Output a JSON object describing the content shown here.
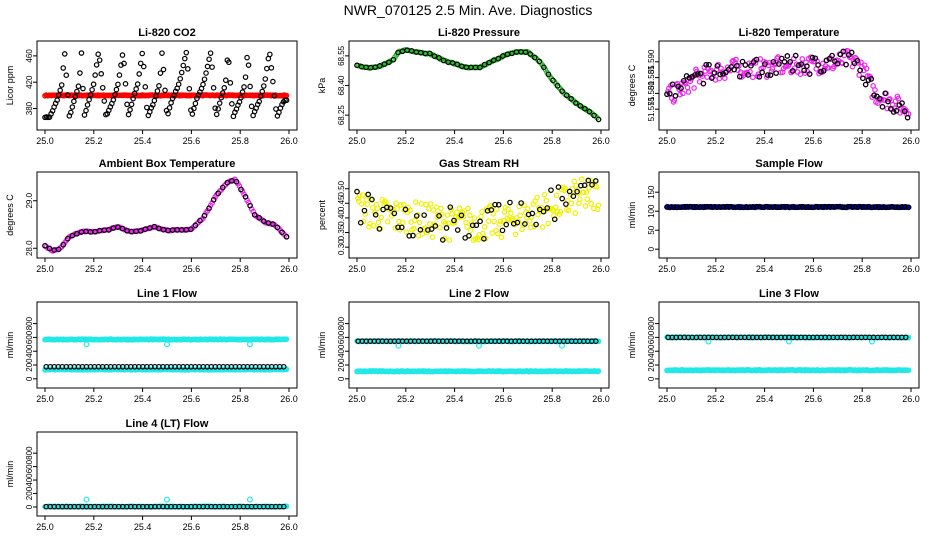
{
  "title": "NWR_070125  2.5 Min. Ave. Diagnostics",
  "colors": {
    "black": "#000000",
    "red": "#ff0000",
    "green": "#22bb22",
    "magenta": "#ee22ee",
    "yellow": "#f0f000",
    "blue": "#0000aa",
    "cyan": "#22e8e8"
  },
  "chart_data": [
    {
      "type": "scatter",
      "title": "Li-820 CO2",
      "ylabel": "Licor ppm",
      "xlim": [
        25.0,
        26.0
      ],
      "ylim": [
        355,
        475
      ],
      "xticks": [
        "25.0",
        "25.2",
        "25.4",
        "25.6",
        "25.8",
        "26.0"
      ],
      "yticks": [
        "380",
        "420",
        "460"
      ],
      "ytick_values": [
        380,
        420,
        460
      ],
      "series": [
        {
          "name": "co2 (red)",
          "color": "red",
          "x": [
            25.0,
            25.99
          ],
          "y": [
            400,
            400
          ],
          "dense": true
        },
        {
          "name": "standards (black)",
          "color": "black",
          "x": [
            25.02,
            25.05,
            25.07,
            25.08,
            25.1,
            25.12,
            25.14,
            25.15,
            25.16,
            25.18,
            25.2,
            25.22,
            25.25,
            25.28,
            25.3,
            25.32,
            25.34,
            25.36,
            25.38,
            25.4,
            25.42,
            25.45,
            25.47,
            25.48,
            25.5,
            25.52,
            25.55,
            25.58,
            25.6,
            25.62,
            25.65,
            25.68,
            25.7,
            25.72,
            25.74,
            25.75,
            25.77,
            25.8,
            25.82,
            25.83,
            25.85,
            25.88,
            25.9,
            25.92,
            25.95,
            25.98
          ],
          "y": [
            367,
            393,
            418,
            467,
            367,
            393,
            418,
            467,
            367,
            393,
            418,
            467,
            367,
            393,
            418,
            467,
            367,
            393,
            418,
            467,
            367,
            393,
            418,
            467,
            367,
            393,
            418,
            467,
            367,
            393,
            418,
            467,
            367,
            393,
            418,
            467,
            367,
            393,
            418,
            467,
            367,
            393,
            418,
            467,
            367,
            393
          ]
        }
      ]
    },
    {
      "type": "scatter",
      "title": "Li-820 Pressure",
      "ylabel": "kPa",
      "xlim": [
        25.0,
        26.0
      ],
      "ylim": [
        68.2,
        68.6
      ],
      "xticks": [
        "25.0",
        "25.2",
        "25.4",
        "25.6",
        "25.8",
        "26.0"
      ],
      "yticks": [
        "68.25",
        "68.40",
        "68.55"
      ],
      "ytick_values": [
        68.25,
        68.4,
        68.55
      ],
      "series": [
        {
          "name": "pressure (green)",
          "color": "green",
          "x": [
            25.0,
            25.05,
            25.1,
            25.15,
            25.17,
            25.2,
            25.25,
            25.3,
            25.35,
            25.4,
            25.45,
            25.5,
            25.55,
            25.6,
            25.65,
            25.7,
            25.75,
            25.8,
            25.85,
            25.9,
            25.95,
            26.0
          ],
          "y": [
            68.5,
            68.49,
            68.5,
            68.53,
            68.57,
            68.58,
            68.57,
            68.56,
            68.53,
            68.51,
            68.49,
            68.49,
            68.52,
            68.55,
            68.57,
            68.57,
            68.52,
            68.43,
            68.36,
            68.31,
            68.27,
            68.22
          ],
          "line": true
        },
        {
          "name": "samples (black)",
          "color": "black",
          "step": 3
        }
      ]
    },
    {
      "type": "scatter",
      "title": "Li-820 Temperature",
      "ylabel": "degrees C",
      "xlim": [
        25.0,
        26.0
      ],
      "ylim": [
        51.57,
        51.595
      ],
      "xticks": [
        "25.0",
        "25.2",
        "25.4",
        "25.6",
        "25.8",
        "26.0"
      ],
      "yticks": [
        "51.575",
        "51.580",
        "51.585",
        "51.590"
      ],
      "ytick_values": [
        51.575,
        51.58,
        51.585,
        51.59
      ],
      "series": [
        {
          "name": "temperature (magenta)",
          "color": "magenta",
          "x": [
            25.0,
            25.05,
            25.1,
            25.15,
            25.2,
            25.3,
            25.4,
            25.5,
            25.6,
            25.7,
            25.75,
            25.8,
            25.85,
            25.9,
            25.95,
            26.0
          ],
          "y": [
            51.579,
            51.581,
            51.584,
            51.586,
            51.587,
            51.588,
            51.588,
            51.589,
            51.589,
            51.59,
            51.591,
            51.588,
            51.58,
            51.578,
            51.576,
            51.575
          ],
          "noise": 0.003
        },
        {
          "name": "samples (black)",
          "color": "black",
          "step": 3
        }
      ]
    },
    {
      "type": "scatter",
      "title": "Ambient Box Temperature",
      "ylabel": "degrees C",
      "xlim": [
        25.0,
        26.0
      ],
      "ylim": [
        27.9,
        29.5
      ],
      "xticks": [
        "25.0",
        "25.2",
        "25.4",
        "25.6",
        "25.8",
        "26.0"
      ],
      "yticks": [
        "28.0",
        "29.0"
      ],
      "ytick_values": [
        28.0,
        29.0
      ],
      "series": [
        {
          "name": "box temp (magenta)",
          "color": "magenta",
          "x": [
            25.0,
            25.03,
            25.06,
            25.1,
            25.15,
            25.2,
            25.25,
            25.3,
            25.35,
            25.4,
            25.45,
            25.5,
            25.55,
            25.6,
            25.65,
            25.7,
            25.75,
            25.78,
            25.82,
            25.86,
            25.9,
            25.94,
            25.97,
            26.0
          ],
          "y": [
            28.05,
            27.95,
            27.98,
            28.25,
            28.35,
            28.35,
            28.38,
            28.45,
            28.35,
            28.38,
            28.45,
            28.38,
            28.38,
            28.4,
            28.65,
            29.1,
            29.4,
            29.45,
            29.1,
            28.7,
            28.55,
            28.5,
            28.35,
            28.2
          ],
          "line": true
        },
        {
          "name": "samples (black)",
          "color": "black",
          "step": 3
        }
      ]
    },
    {
      "type": "scatter",
      "title": "Gas Stream RH",
      "ylabel": "percent",
      "xlim": [
        25.0,
        26.0
      ],
      "ylim": [
        0.28,
        0.54
      ],
      "xticks": [
        "25.0",
        "25.2",
        "25.4",
        "25.6",
        "25.8",
        "26.0"
      ],
      "yticks": [
        "0.30",
        "0.35",
        "0.40",
        "0.45",
        "0.50"
      ],
      "ytick_values": [
        0.3,
        0.35,
        0.4,
        0.45,
        0.5
      ],
      "series": [
        {
          "name": "rh (yellow)",
          "color": "yellow",
          "x": [
            25.0,
            25.1,
            25.2,
            25.3,
            25.4,
            25.5,
            25.6,
            25.7,
            25.8,
            25.9,
            26.0
          ],
          "y": [
            0.44,
            0.41,
            0.4,
            0.39,
            0.38,
            0.38,
            0.39,
            0.41,
            0.44,
            0.47,
            0.49
          ],
          "noise": 0.06
        },
        {
          "name": "samples (black)",
          "color": "black",
          "step": 4
        }
      ]
    },
    {
      "type": "scatter",
      "title": "Sample Flow",
      "ylabel": "ml/min",
      "xlim": [
        25.0,
        26.0
      ],
      "ylim": [
        -10,
        190
      ],
      "xticks": [
        "25.0",
        "25.2",
        "25.4",
        "25.6",
        "25.8",
        "26.0"
      ],
      "yticks": [
        "0",
        "50",
        "100",
        "150"
      ],
      "ytick_values": [
        0,
        50,
        100,
        150
      ],
      "series": [
        {
          "name": "sample flow (blue)",
          "color": "blue",
          "x": [
            25.0,
            25.99
          ],
          "y": [
            111,
            111
          ],
          "dense": true,
          "noise": 2
        },
        {
          "name": "samples (black)",
          "color": "black",
          "step": 3
        }
      ]
    },
    {
      "type": "scatter",
      "title": "Line 1 Flow",
      "ylabel": "ml/min",
      "xlim": [
        25.0,
        26.0
      ],
      "ylim": [
        -60,
        1040
      ],
      "xticks": [
        "25.0",
        "25.2",
        "25.4",
        "25.6",
        "25.8",
        "26.0"
      ],
      "yticks": [
        "0",
        "200",
        "400",
        "600",
        "800"
      ],
      "ytick_values": [
        0,
        200,
        400,
        600,
        800
      ],
      "series": [
        {
          "name": "line 1 (cyan high)",
          "color": "cyan",
          "x": [
            25.0,
            25.99
          ],
          "y": [
            570,
            570
          ],
          "dense": true,
          "outliers": [
            [
              25.17,
              500
            ],
            [
              25.5,
              500
            ],
            [
              25.84,
              500
            ]
          ]
        },
        {
          "name": "line 1 (cyan low)",
          "color": "cyan",
          "x": [
            25.0,
            25.99
          ],
          "y": [
            135,
            135
          ],
          "dense": true
        },
        {
          "name": "line 1 (black)",
          "color": "black",
          "x": [
            25.0,
            25.99
          ],
          "y": [
            175,
            175
          ],
          "step": 1,
          "sparse": true
        }
      ]
    },
    {
      "type": "scatter",
      "title": "Line 2 Flow",
      "ylabel": "ml/min",
      "xlim": [
        25.0,
        26.0
      ],
      "ylim": [
        -60,
        1040
      ],
      "xticks": [
        "25.0",
        "25.2",
        "25.4",
        "25.6",
        "25.8",
        "26.0"
      ],
      "yticks": [
        "0",
        "200",
        "400",
        "600",
        "800"
      ],
      "ytick_values": [
        0,
        200,
        400,
        600,
        800
      ],
      "series": [
        {
          "name": "line 2 (cyan high)",
          "color": "cyan",
          "x": [
            25.0,
            25.99
          ],
          "y": [
            545,
            545
          ],
          "dense": true,
          "outliers": [
            [
              25.17,
              480
            ],
            [
              25.5,
              480
            ],
            [
              25.84,
              480
            ]
          ]
        },
        {
          "name": "line 2 (cyan low)",
          "color": "cyan",
          "x": [
            25.0,
            25.99
          ],
          "y": [
            110,
            110
          ],
          "dense": true
        },
        {
          "name": "line 2 (black)",
          "color": "black",
          "x": [
            25.0,
            25.99
          ],
          "y": [
            545,
            545
          ],
          "step": 1,
          "sparse": true
        }
      ]
    },
    {
      "type": "scatter",
      "title": "Line 3 Flow",
      "ylabel": "ml/min",
      "xlim": [
        25.0,
        26.0
      ],
      "ylim": [
        -60,
        1040
      ],
      "xticks": [
        "25.0",
        "25.2",
        "25.4",
        "25.6",
        "25.8",
        "26.0"
      ],
      "yticks": [
        "0",
        "200",
        "400",
        "600",
        "800"
      ],
      "ytick_values": [
        0,
        200,
        400,
        600,
        800
      ],
      "series": [
        {
          "name": "line 3 (cyan high)",
          "color": "cyan",
          "x": [
            25.0,
            25.99
          ],
          "y": [
            600,
            600
          ],
          "dense": true,
          "outliers": [
            [
              25.17,
              540
            ],
            [
              25.5,
              540
            ],
            [
              25.84,
              540
            ]
          ]
        },
        {
          "name": "line 3 (cyan low)",
          "color": "cyan",
          "x": [
            25.0,
            25.99
          ],
          "y": [
            125,
            125
          ],
          "dense": true
        },
        {
          "name": "line 3 (black)",
          "color": "black",
          "x": [
            25.0,
            25.99
          ],
          "y": [
            600,
            600
          ],
          "step": 1,
          "sparse": true
        }
      ]
    },
    {
      "type": "scatter",
      "title": "Line 4 (LT) Flow",
      "ylabel": "ml/min",
      "xlim": [
        25.0,
        26.0
      ],
      "ylim": [
        -60,
        1040
      ],
      "xticks": [
        "25.0",
        "25.2",
        "25.4",
        "25.6",
        "25.8",
        "26.0"
      ],
      "yticks": [
        "0",
        "200",
        "400",
        "600",
        "800"
      ],
      "ytick_values": [
        0,
        200,
        400,
        600,
        800
      ],
      "series": [
        {
          "name": "line 4 (cyan)",
          "color": "cyan",
          "x": [
            25.0,
            25.99
          ],
          "y": [
            5,
            5
          ],
          "dense": true,
          "outliers": [
            [
              25.17,
              110
            ],
            [
              25.5,
              110
            ],
            [
              25.84,
              110
            ]
          ]
        },
        {
          "name": "line 4 (black)",
          "color": "black",
          "x": [
            25.0,
            25.99
          ],
          "y": [
            5,
            5
          ],
          "step": 1,
          "sparse": true
        }
      ]
    }
  ]
}
